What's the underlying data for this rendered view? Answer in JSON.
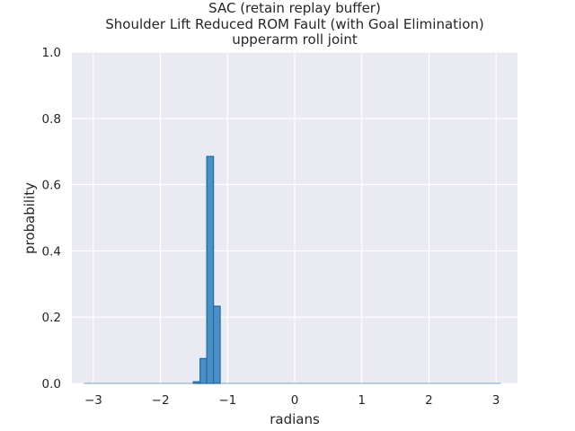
{
  "chart_data": {
    "type": "bar",
    "title_lines": [
      "SAC (retain replay buffer)",
      "Shoulder Lift Reduced ROM Fault (with Goal Elimination)",
      "upperarm roll joint"
    ],
    "xlabel": "radians",
    "ylabel": "probability",
    "xlim": [
      -3.32,
      3.32
    ],
    "ylim": [
      0,
      1.0
    ],
    "xticks": [
      -3,
      -2,
      -1,
      0,
      1,
      2,
      3
    ],
    "xtick_labels": [
      "−3",
      "−2",
      "−1",
      "0",
      "1",
      "2",
      "3"
    ],
    "yticks": [
      0,
      0.2,
      0.4,
      0.6,
      0.8,
      1.0
    ],
    "ytick_labels": [
      "0.0",
      "0.2",
      "0.4",
      "0.6",
      "0.8",
      "1.0"
    ],
    "grid": true,
    "series": [
      {
        "bins": [
          {
            "x0": -1.51,
            "x1": -1.41,
            "value": 0.005
          },
          {
            "x0": -1.41,
            "x1": -1.31,
            "value": 0.075
          },
          {
            "x0": -1.31,
            "x1": -1.21,
            "value": 0.685
          },
          {
            "x0": -1.21,
            "x1": -1.11,
            "value": 0.233
          }
        ],
        "baseline_range": [
          -3.14,
          3.07
        ]
      }
    ],
    "colors": {
      "plot_background": "#eaeaf2",
      "grid": "#ffffff",
      "bar_fill": "#4c8fc4",
      "bar_edge": "#1f6aa8",
      "text": "#262626"
    }
  }
}
